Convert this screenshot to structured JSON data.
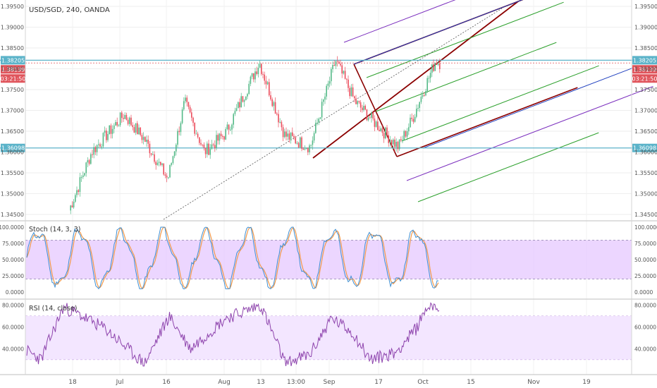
{
  "symbol_label": "USD/SGD, 240, OANDA",
  "price_panel": {
    "price_ticks": [
      "1.34500",
      "1.35000",
      "1.35500",
      "1.36000",
      "1.36500",
      "1.37000",
      "1.37500",
      "1.38000",
      "1.38500",
      "1.39000",
      "1.39500"
    ],
    "price_tick_values": [
      1.345,
      1.35,
      1.355,
      1.36,
      1.365,
      1.37,
      1.375,
      1.38,
      1.385,
      1.39,
      1.395
    ],
    "ylim": [
      1.3445,
      1.3955
    ],
    "horizontal_levels": [
      {
        "label": "1.38205",
        "value": 1.38205,
        "color": "#5bb3c9"
      },
      {
        "label": "1.36098",
        "value": 1.36098,
        "color": "#5bb3c9"
      }
    ],
    "last_price": {
      "label": "1.38139",
      "value": 1.38139,
      "color": "#e0545b"
    },
    "countdown": {
      "label": "03:21:50",
      "color": "#e0545b"
    }
  },
  "stoch_panel": {
    "label": "Stoch (14, 3, 3)",
    "ticks": [
      "0.0000",
      "25.0000",
      "50.0000",
      "75.0000",
      "100.0000"
    ],
    "tick_values": [
      0,
      25,
      50,
      75,
      100
    ],
    "band": [
      20,
      80
    ],
    "band_color": "#e5c8ff"
  },
  "rsi_panel": {
    "label": "RSI (14, close)",
    "ticks": [
      "40.0000",
      "60.0000",
      "80.0000"
    ],
    "tick_values": [
      40,
      60,
      80
    ],
    "ylim": [
      22,
      83
    ],
    "band": [
      30,
      70
    ],
    "band_color": "#f3e6ff",
    "line_color": "#8e44ad"
  },
  "time_axis": {
    "labels": [
      "18",
      "Jul",
      "16",
      "Aug",
      "13",
      "13:00",
      "Sep",
      "17",
      "Oct",
      "15",
      "Nov",
      "19"
    ],
    "label_x": [
      103,
      170,
      236,
      318,
      370,
      420,
      467,
      537,
      600,
      668,
      757,
      832
    ]
  },
  "colors": {
    "up": "#53b987",
    "down": "#eb4d5c",
    "pitchfork_median": "#8b0000",
    "pitchfork_inner": "#2ca02c",
    "pitchfork_mid": "#1f3fbf",
    "pitchfork_outer": "#7b2fbe"
  },
  "chart_data": [
    {
      "type": "candlestick",
      "title": "USD/SGD, 240, OANDA",
      "x_range": [
        "Jun",
        "Oct"
      ],
      "key_points": [
        {
          "x": "Jun 12",
          "y": 1.346
        },
        {
          "x": "Jun 21",
          "y": 1.36
        },
        {
          "x": "Jun 28",
          "y": 1.369
        },
        {
          "x": "Jul 2",
          "y": 1.363
        },
        {
          "x": "Jul 10",
          "y": 1.3535
        },
        {
          "x": "Jul 18",
          "y": 1.372
        },
        {
          "x": "Jul 26",
          "y": 1.36
        },
        {
          "x": "Aug 6",
          "y": 1.3645
        },
        {
          "x": "Aug 15",
          "y": 1.3815
        },
        {
          "x": "Aug 23",
          "y": 1.364
        },
        {
          "x": "Aug 29",
          "y": 1.3612
        },
        {
          "x": "Sep 7",
          "y": 1.382
        },
        {
          "x": "Sep 13",
          "y": 1.372
        },
        {
          "x": "Sep 24",
          "y": 1.3612
        },
        {
          "x": "Sep 29",
          "y": 1.368
        },
        {
          "x": "Oct 3",
          "y": 1.382
        },
        {
          "x": "Oct 5",
          "y": 1.3814
        }
      ],
      "ylim": [
        1.3445,
        1.3955
      ]
    },
    {
      "type": "line",
      "title": "Stoch (14, 3, 3)",
      "ylim": [
        0,
        100
      ],
      "series": [
        {
          "name": "Stoch (14, 3, 3)",
          "range": [
            5,
            100
          ]
        }
      ]
    },
    {
      "type": "line",
      "title": "RSI (14, close)",
      "ylim": [
        22,
        83
      ],
      "series": [
        {
          "name": "RSI (14, close)",
          "range": [
            26,
            81
          ]
        }
      ]
    }
  ]
}
